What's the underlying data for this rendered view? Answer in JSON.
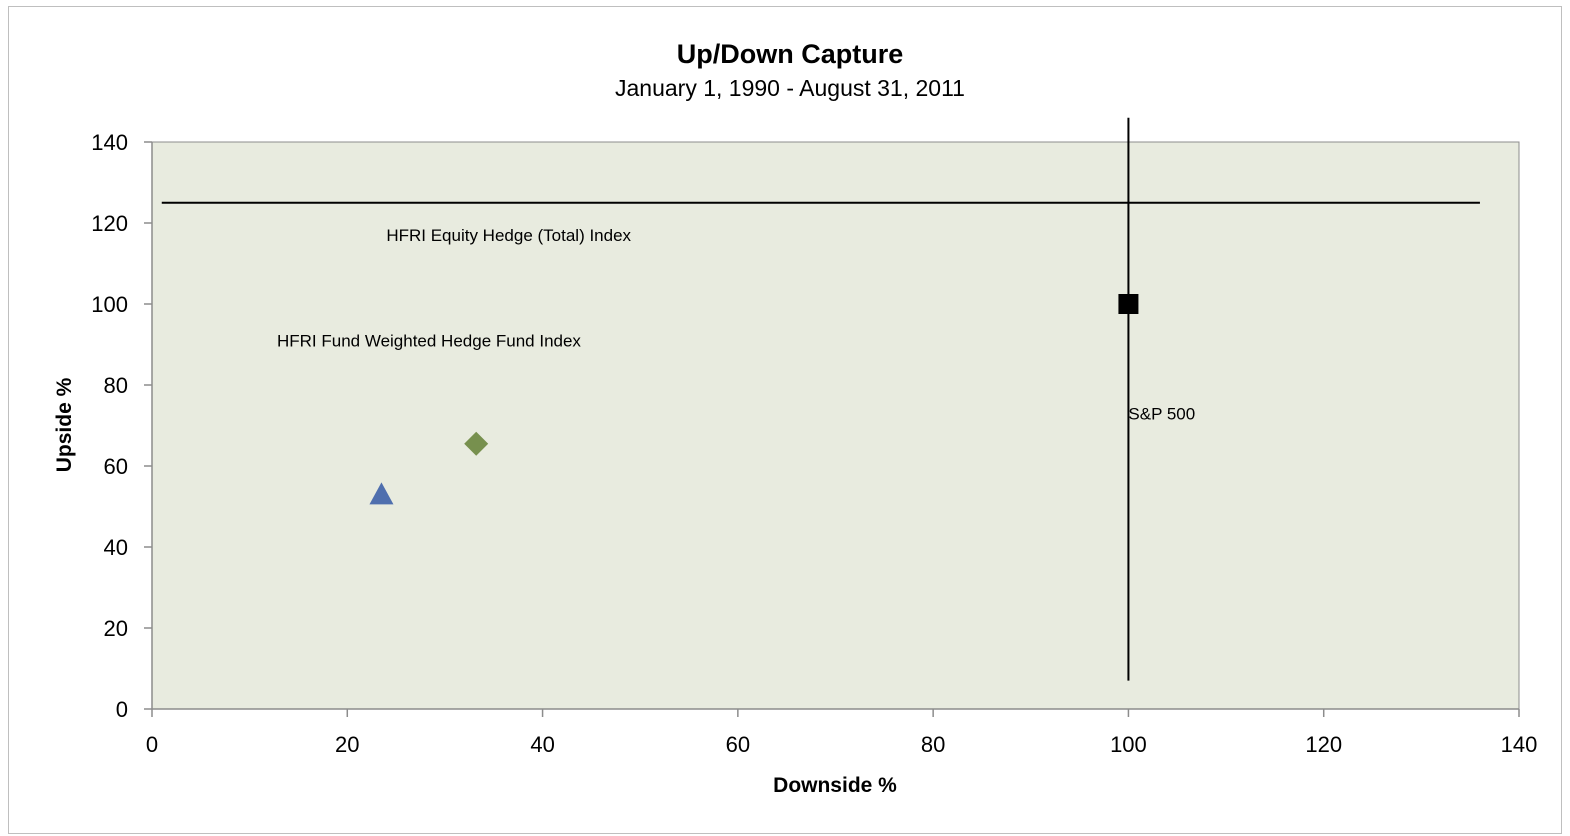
{
  "chart_data": {
    "type": "scatter",
    "title": "Up/Down Capture",
    "subtitle": "January 1, 1990 - August 31, 2011",
    "xlabel": "Downside %",
    "ylabel": "Upside %",
    "xlim": [
      0,
      140
    ],
    "ylim": [
      0,
      140
    ],
    "xticks": [
      "0",
      "20",
      "40",
      "60",
      "80",
      "100",
      "120",
      "140"
    ],
    "yticks": [
      "0",
      "20",
      "40",
      "60",
      "80",
      "100",
      "120",
      "140"
    ],
    "plot_background": "#e8ebdf",
    "grid": false,
    "legend": "none",
    "points": [
      {
        "x": 23.5,
        "y": 53,
        "marker": "triangle",
        "color": "#4f6fae"
      },
      {
        "x": 33.2,
        "y": 65.5,
        "marker": "diamond",
        "color": "#77904e"
      },
      {
        "x": 100,
        "y": 100,
        "marker": "square",
        "color": "#000000"
      }
    ],
    "reference_lines": [
      {
        "orientation": "horizontal",
        "y": 125,
        "x_from": 1,
        "x_to": 136,
        "color": "#000000"
      },
      {
        "orientation": "vertical",
        "x": 100,
        "y_from": 7,
        "y_to": 146,
        "color": "#000000"
      }
    ],
    "annotations": [
      {
        "text": "HFRI Equity Hedge (Total) Index",
        "x": 24,
        "y": 115.5
      },
      {
        "text": "HFRI Fund Weighted Hedge Fund Index",
        "x": 12.8,
        "y": 89.5
      },
      {
        "text": "S&P 500",
        "x": 100,
        "y": 71.5
      }
    ]
  }
}
